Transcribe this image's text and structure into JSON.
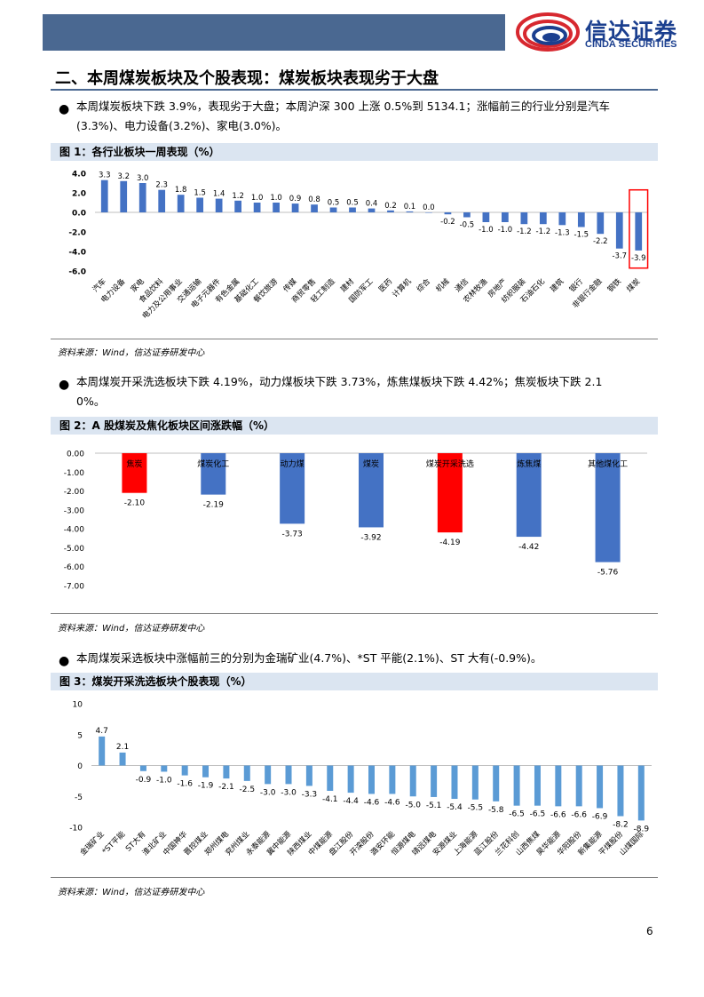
{
  "header": {
    "logo_cn": "信达证券",
    "logo_en": "CINDA SECURITIES"
  },
  "section_title": "二、本周煤炭板块及个股表现：煤炭板块表现劣于大盘",
  "bullets": [
    {
      "line1": "本周煤炭板块下跌 3.9%，表现劣于大盘；本周沪深 300 上涨 0.5%到 5134.1；涨幅前三的行业分别是汽车",
      "line2": "(3.3%)、电力设备(3.2%)、家电(3.0%)。"
    },
    {
      "line1": "本周煤炭开采洗选板块下跌 4.19%，动力煤板块下跌 3.73%，炼焦煤板块下跌 4.42%；焦炭板块下跌 2.1",
      "line2": "0%。"
    },
    {
      "line1": "本周煤炭采选板块中涨幅前三的分别为金瑞矿业(4.7%)、*ST 平能(2.1%)、ST 大有(-0.9%)。"
    }
  ],
  "figures": [
    {
      "label": "图 1：各行业板块一周表现（%）",
      "source": "资料来源：Wind，信达证券研发中心"
    },
    {
      "label": "图 2：A 股煤炭及焦化板块区间涨跌幅（%）",
      "source": "资料来源：Wind，信达证券研发中心"
    },
    {
      "label": "图 3：煤炭开采洗选板块个股表现（%）",
      "source": "资料来源：Wind，信达证券研发中心"
    }
  ],
  "page_number": "6",
  "colors": {
    "bar_blue": "#4472c4",
    "bar_red": "#ff0000",
    "bar_lightblue": "#5b9bd5",
    "highlight_box": "#ff0000"
  },
  "chart_data": [
    {
      "type": "bar",
      "title": "各行业板块一周表现（%）",
      "categories": [
        "汽车",
        "电力设备",
        "家电",
        "食品饮料",
        "电力及公用事业",
        "交通运输",
        "电子元器件",
        "有色金属",
        "基础化工",
        "餐饮旅游",
        "传媒",
        "商贸零售",
        "轻工制造",
        "建材",
        "国防军工",
        "医药",
        "计算机",
        "综合",
        "机械",
        "通信",
        "农林牧渔",
        "房地产",
        "纺织服装",
        "石油石化",
        "建筑",
        "银行",
        "非银行金融",
        "钢铁",
        "煤炭"
      ],
      "values": [
        3.3,
        3.2,
        3.0,
        2.3,
        1.8,
        1.5,
        1.4,
        1.2,
        1.0,
        1.0,
        0.9,
        0.8,
        0.5,
        0.5,
        0.4,
        0.2,
        0.1,
        0.0,
        -0.2,
        -0.5,
        -1.0,
        -1.0,
        -1.2,
        -1.2,
        -1.3,
        -1.5,
        -2.2,
        -3.7,
        -3.9
      ],
      "labels": [
        "3.3",
        "3.2",
        "3.0",
        "2.3",
        "1.8",
        "1.5",
        "1.4",
        "1.2",
        "1.0",
        "1.0",
        "0.9",
        "0.8",
        "0.5",
        "0.5",
        "0.4",
        "0.2",
        "0.1",
        "0.0",
        "-0.2",
        "-0.5",
        "-1.0",
        "-1.0",
        "-1.2",
        "-1.2",
        "-1.3",
        "-1.5",
        "-2.2",
        "-3.7",
        "-3.9"
      ],
      "yticks": [
        "4.0",
        "2.0",
        "0.0",
        "-2.0",
        "-4.0",
        "-6.0"
      ],
      "ylim": [
        -6,
        4
      ],
      "highlight": "煤炭"
    },
    {
      "type": "bar",
      "title": "A 股煤炭及焦化板块区间涨跌幅（%）",
      "categories": [
        "焦炭",
        "煤炭化工",
        "动力煤",
        "煤炭",
        "煤炭开采洗选",
        "炼焦煤",
        "其他煤化工"
      ],
      "values": [
        -2.1,
        -2.19,
        -3.73,
        -3.92,
        -4.19,
        -4.42,
        -5.76
      ],
      "labels": [
        "-2.10",
        "-2.19",
        "-3.73",
        "-3.92",
        "-4.19",
        "-4.42",
        "-5.76"
      ],
      "red_bars": [
        "焦炭",
        "煤炭开采洗选"
      ],
      "yticks": [
        "0.00",
        "-1.00",
        "-2.00",
        "-3.00",
        "-4.00",
        "-5.00",
        "-6.00",
        "-7.00"
      ],
      "ylim": [
        -7,
        0
      ]
    },
    {
      "type": "bar",
      "title": "煤炭开采洗选板块个股表现（%）",
      "categories": [
        "金瑞矿业",
        "*ST平能",
        "ST大有",
        "淮北矿业",
        "中国神华",
        "晋控煤业",
        "郑州煤电",
        "兖州煤业",
        "永泰能源",
        "冀中能源",
        "陕西煤业",
        "中煤能源",
        "盘江股份",
        "开滦股份",
        "潞安环能",
        "恒源煤电",
        "靖远煤电",
        "安源煤业",
        "上海能源",
        "蓝江股份",
        "兰花科创",
        "山西焦煤",
        "昊华能源",
        "华阳股份",
        "新集能源",
        "平煤股份",
        "山煤国际"
      ],
      "values": [
        4.7,
        2.1,
        -0.9,
        -1.0,
        -1.6,
        -1.9,
        -2.1,
        -2.5,
        -3.0,
        -3.0,
        -3.3,
        -4.1,
        -4.4,
        -4.6,
        -4.6,
        -5.0,
        -5.1,
        -5.4,
        -5.5,
        -5.8,
        -6.5,
        -6.5,
        -6.6,
        -6.6,
        -6.9,
        -8.2,
        -8.9
      ],
      "labels": [
        "4.7",
        "2.1",
        "-0.9",
        "-1.0",
        "-1.6",
        "-1.9",
        "-2.1",
        "-2.5",
        "-3.0",
        "-3.0",
        "-3.3",
        "-4.1",
        "-4.4",
        "-4.6",
        "-4.6",
        "-5.0",
        "-5.1",
        "-5.4",
        "-5.5",
        "-5.8",
        "-6.5",
        "-6.5",
        "-6.6",
        "-6.6",
        "-6.9",
        "-8.2",
        "-8.9"
      ],
      "yticks": [
        "10",
        "5",
        "0",
        "-5",
        "-10"
      ],
      "ylim": [
        -10,
        10
      ]
    }
  ]
}
